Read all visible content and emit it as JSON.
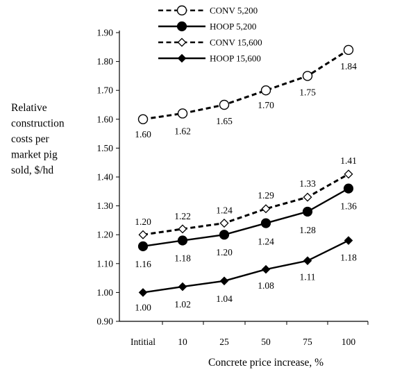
{
  "chart_data": {
    "type": "line",
    "title": "",
    "xlabel": "Concrete  price increase, %",
    "ylabel_lines": [
      "Relative",
      "construction",
      "costs per",
      "market pig",
      "sold, $/hd"
    ],
    "categories": [
      "Intitial",
      "10",
      "25",
      "50",
      "75",
      "100"
    ],
    "ylim": [
      0.9,
      1.9
    ],
    "yticks": [
      "0.90",
      "1.00",
      "1.10",
      "1.20",
      "1.30",
      "1.40",
      "1.50",
      "1.60",
      "1.70",
      "1.80",
      "1.90"
    ],
    "legend_position": "top",
    "grid": false,
    "series": [
      {
        "name": "CONV 5,200",
        "style": "dashed",
        "marker": "open-circle",
        "values": [
          1.6,
          1.62,
          1.65,
          1.7,
          1.75,
          1.84
        ],
        "labels": [
          "1.60",
          "1.62",
          "1.65",
          "1.70",
          "1.75",
          "1.84"
        ]
      },
      {
        "name": "HOOP 5,200",
        "style": "solid",
        "marker": "filled-circle",
        "values": [
          1.16,
          1.18,
          1.2,
          1.24,
          1.28,
          1.36
        ],
        "labels": [
          "1.16",
          "1.18",
          "1.20",
          "1.24",
          "1.28",
          "1.36"
        ]
      },
      {
        "name": "CONV 15,600",
        "style": "dashed",
        "marker": "open-diamond",
        "values": [
          1.2,
          1.22,
          1.24,
          1.29,
          1.33,
          1.41
        ],
        "labels": [
          "1.20",
          "1.22",
          "1.24",
          "1.29",
          "1.33",
          "1.41"
        ]
      },
      {
        "name": "HOOP 15,600",
        "style": "solid",
        "marker": "filled-diamond",
        "values": [
          1.0,
          1.02,
          1.04,
          1.08,
          1.11,
          1.18
        ],
        "labels": [
          "1.00",
          "1.02",
          "1.04",
          "1.08",
          "1.11",
          "1.18"
        ]
      }
    ]
  }
}
